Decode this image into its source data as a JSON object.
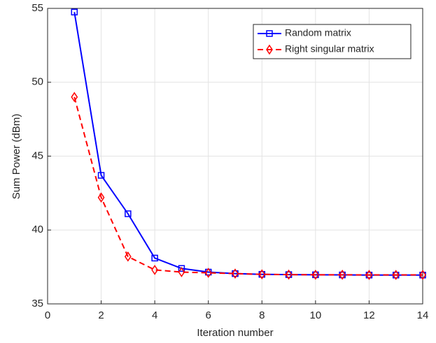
{
  "chart_data": {
    "type": "line",
    "xlabel": "Iteration number",
    "ylabel": "Sum Power (dBm)",
    "x": [
      1,
      2,
      3,
      4,
      5,
      6,
      7,
      8,
      9,
      10,
      11,
      12,
      13,
      14
    ],
    "series": [
      {
        "name": "Random matrix",
        "color": "#0000ff",
        "marker": "square",
        "dash": "solid",
        "values": [
          54.75,
          43.7,
          41.1,
          38.1,
          37.4,
          37.15,
          37.05,
          37.0,
          36.98,
          36.97,
          36.96,
          36.95,
          36.95,
          36.95
        ]
      },
      {
        "name": "Right singular matrix",
        "color": "#ff0000",
        "marker": "diamond",
        "dash": "dashed",
        "values": [
          49.0,
          42.2,
          38.2,
          37.3,
          37.15,
          37.1,
          37.05,
          37.0,
          36.98,
          36.97,
          36.97,
          36.96,
          36.96,
          36.96
        ]
      }
    ],
    "xlim": [
      0,
      14
    ],
    "xticks": [
      0,
      2,
      4,
      6,
      8,
      10,
      12,
      14
    ],
    "ylim": [
      35,
      55
    ],
    "yticks": [
      35,
      40,
      45,
      50,
      55
    ],
    "grid": true,
    "legend": "upper right"
  }
}
